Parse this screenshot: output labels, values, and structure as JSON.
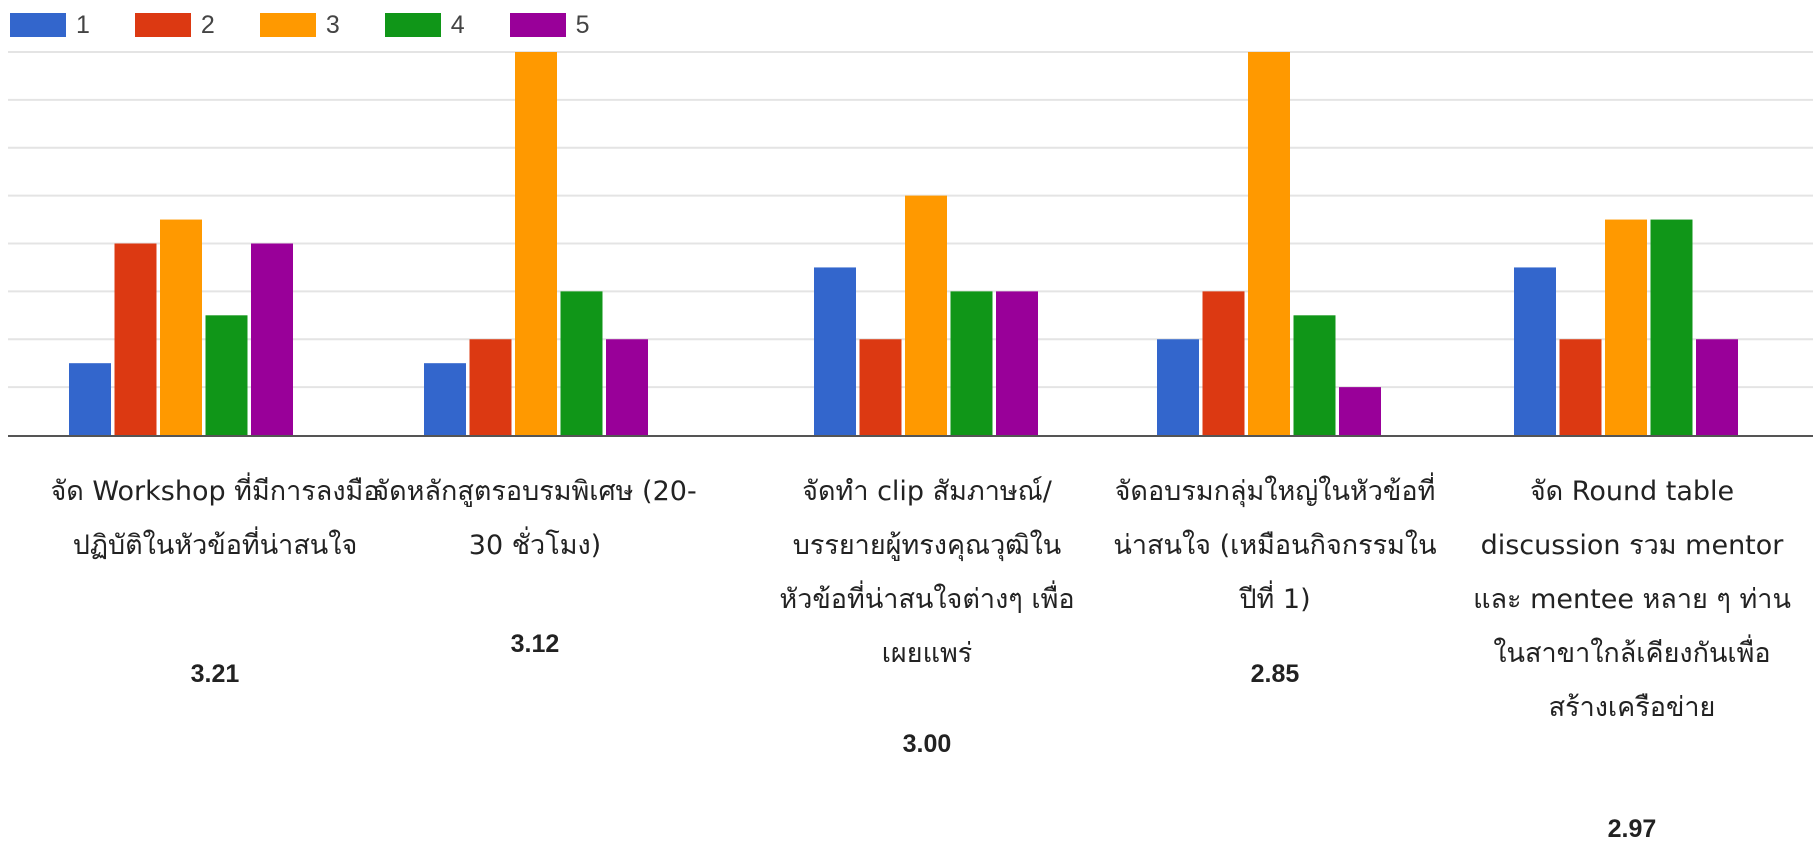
{
  "chart_data": {
    "type": "bar",
    "legend_position": "top-left",
    "grid": true,
    "ylim": [
      0,
      16
    ],
    "categories": [
      "จัด Workshop ที่มีการลงมือปฏิบัติในหัวข้อที่น่าสนใจ",
      "จัดหลักสูตรอบรมพิเศษ (20-30 ชั่วโมง)",
      "จัดทำ clip สัมภาษณ์/บรรยายผู้ทรงคุณวุฒิในหัวข้อที่น่าสนใจต่างๆ เพื่อเผยแพร่",
      "จัดอบรมกลุ่มใหญ่ในหัวข้อที่น่าสนใจ (เหมือนกิจกรรมในปีที่ 1)",
      "จัด Round table discussion รวม mentor และ mentee หลาย ๆ ท่านในสาขาใกล้เคียงกันเพื่อสร้างเครือข่าย"
    ],
    "averages": [
      "3.21",
      "3.12",
      "3.00",
      "2.85",
      "2.97"
    ],
    "series": [
      {
        "name": "1",
        "color": "#3366cc",
        "values": [
          3,
          3,
          7,
          4,
          7
        ]
      },
      {
        "name": "2",
        "color": "#dc3912",
        "values": [
          8,
          4,
          4,
          6,
          4
        ]
      },
      {
        "name": "3",
        "color": "#ff9900",
        "values": [
          9,
          16,
          10,
          16,
          9
        ]
      },
      {
        "name": "4",
        "color": "#109618",
        "values": [
          5,
          6,
          6,
          5,
          9
        ]
      },
      {
        "name": "5",
        "color": "#990099",
        "values": [
          8,
          4,
          6,
          2,
          4
        ]
      }
    ]
  }
}
